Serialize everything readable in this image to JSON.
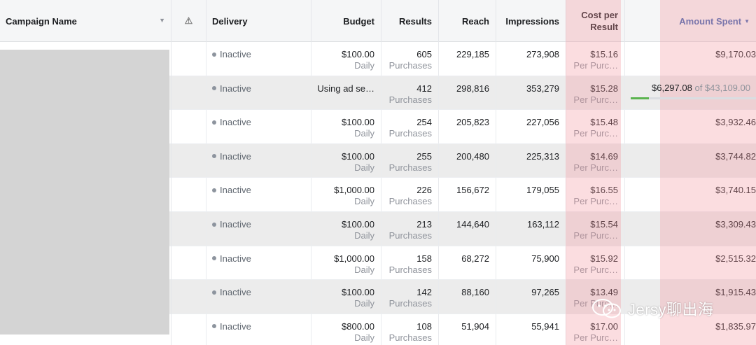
{
  "columns": {
    "campaign_name": "Campaign Name",
    "warning_icon": "warning-triangle-icon",
    "delivery": "Delivery",
    "budget": "Budget",
    "results": "Results",
    "reach": "Reach",
    "impressions": "Impressions",
    "cost_per_result_line1": "Cost per",
    "cost_per_result_line2": "Result",
    "amount_spent": "Amount Spent"
  },
  "rows": [
    {
      "delivery": "Inactive",
      "budget": "$100.00",
      "budget_sub": "Daily",
      "results": "605",
      "results_sub": "Purchases",
      "reach": "229,185",
      "impressions": "273,908",
      "cost": "$15.16",
      "cost_sub": "Per Purc…",
      "amount": "$9,170.03"
    },
    {
      "delivery": "Inactive",
      "budget": "Using ad se…",
      "budget_sub": "",
      "results": "412",
      "results_sub": "Purchases",
      "reach": "298,816",
      "impressions": "353,279",
      "cost": "$15.28",
      "cost_sub": "Per Purc…",
      "amount": "$6,297.08",
      "amount_of": "of $43,109.00",
      "progress_fraction": 0.146
    },
    {
      "delivery": "Inactive",
      "budget": "$100.00",
      "budget_sub": "Daily",
      "results": "254",
      "results_sub": "Purchases",
      "reach": "205,823",
      "impressions": "227,056",
      "cost": "$15.48",
      "cost_sub": "Per Purc…",
      "amount": "$3,932.46"
    },
    {
      "delivery": "Inactive",
      "budget": "$100.00",
      "budget_sub": "Daily",
      "results": "255",
      "results_sub": "Purchases",
      "reach": "200,480",
      "impressions": "225,313",
      "cost": "$14.69",
      "cost_sub": "Per Purc…",
      "amount": "$3,744.82"
    },
    {
      "delivery": "Inactive",
      "budget": "$1,000.00",
      "budget_sub": "Daily",
      "results": "226",
      "results_sub": "Purchases",
      "reach": "156,672",
      "impressions": "179,055",
      "cost": "$16.55",
      "cost_sub": "Per Purc…",
      "amount": "$3,740.15"
    },
    {
      "delivery": "Inactive",
      "budget": "$100.00",
      "budget_sub": "Daily",
      "results": "213",
      "results_sub": "Purchases",
      "reach": "144,640",
      "impressions": "163,112",
      "cost": "$15.54",
      "cost_sub": "Per Purc…",
      "amount": "$3,309.43"
    },
    {
      "delivery": "Inactive",
      "budget": "$1,000.00",
      "budget_sub": "Daily",
      "results": "158",
      "results_sub": "Purchases",
      "reach": "68,272",
      "impressions": "75,900",
      "cost": "$15.92",
      "cost_sub": "Per Purc…",
      "amount": "$2,515.32"
    },
    {
      "delivery": "Inactive",
      "budget": "$100.00",
      "budget_sub": "Daily",
      "results": "142",
      "results_sub": "Purchases",
      "reach": "88,160",
      "impressions": "97,265",
      "cost": "$13.49",
      "cost_sub": "Per Purc…",
      "amount": "$1,915.43"
    },
    {
      "delivery": "Inactive",
      "budget": "$800.00",
      "budget_sub": "Daily",
      "results": "108",
      "results_sub": "Purchases",
      "reach": "51,904",
      "impressions": "55,941",
      "cost": "$17.00",
      "cost_sub": "Per Purc…",
      "amount": "$1,835.97"
    }
  ],
  "watermark": {
    "text": "Jersy聊出海",
    "icon": "wechat-icon"
  },
  "colors": {
    "highlight": "#f4969f",
    "accent": "#4267b2",
    "progress": "#5ab34e",
    "status_dot": "#8d949e"
  }
}
